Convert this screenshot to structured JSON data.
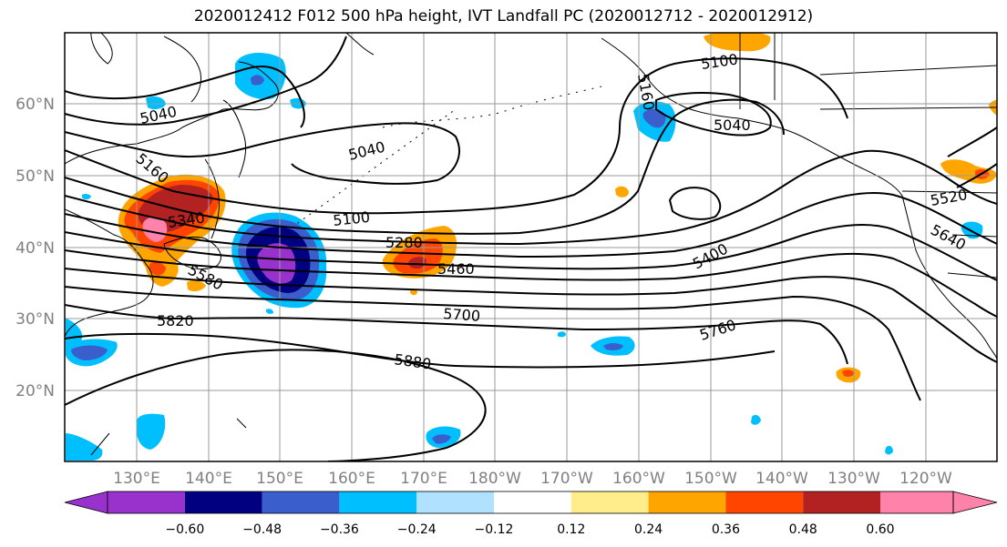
{
  "title": "2020012412 F012 500 hPa height, IVT Landfall PC (2020012712 - 2020012912)",
  "map": {
    "projection": "cylindrical",
    "lon_range": [
      120,
      250
    ],
    "lat_range": [
      10,
      70
    ],
    "lat_labels": [
      "20°N",
      "30°N",
      "40°N",
      "50°N",
      "60°N"
    ],
    "lon_labels": [
      "130°E",
      "140°E",
      "150°E",
      "160°E",
      "170°E",
      "180°W",
      "170°W",
      "160°W",
      "150°W",
      "140°W",
      "130°W",
      "120°W"
    ],
    "grid": true,
    "contour_labels": [
      "5040",
      "5160",
      "5040",
      "5100",
      "5280",
      "5340",
      "5580",
      "5460",
      "5820",
      "5700",
      "5880",
      "5100",
      "5040",
      "5160",
      "5400",
      "5520",
      "5640",
      "5760"
    ]
  },
  "colorbar": {
    "ticks": [
      "−0.60",
      "−0.48",
      "−0.36",
      "−0.24",
      "−0.12",
      "0.12",
      "0.24",
      "0.36",
      "0.48",
      "0.60"
    ],
    "colors": [
      "#9932cc",
      "#000080",
      "#3a5fcd",
      "#00bfff",
      "#b0e2ff",
      "#ffffff",
      "#ffec8b",
      "#ffa500",
      "#ff4500",
      "#b22222",
      "#ff82ab"
    ],
    "extend": "both"
  }
}
